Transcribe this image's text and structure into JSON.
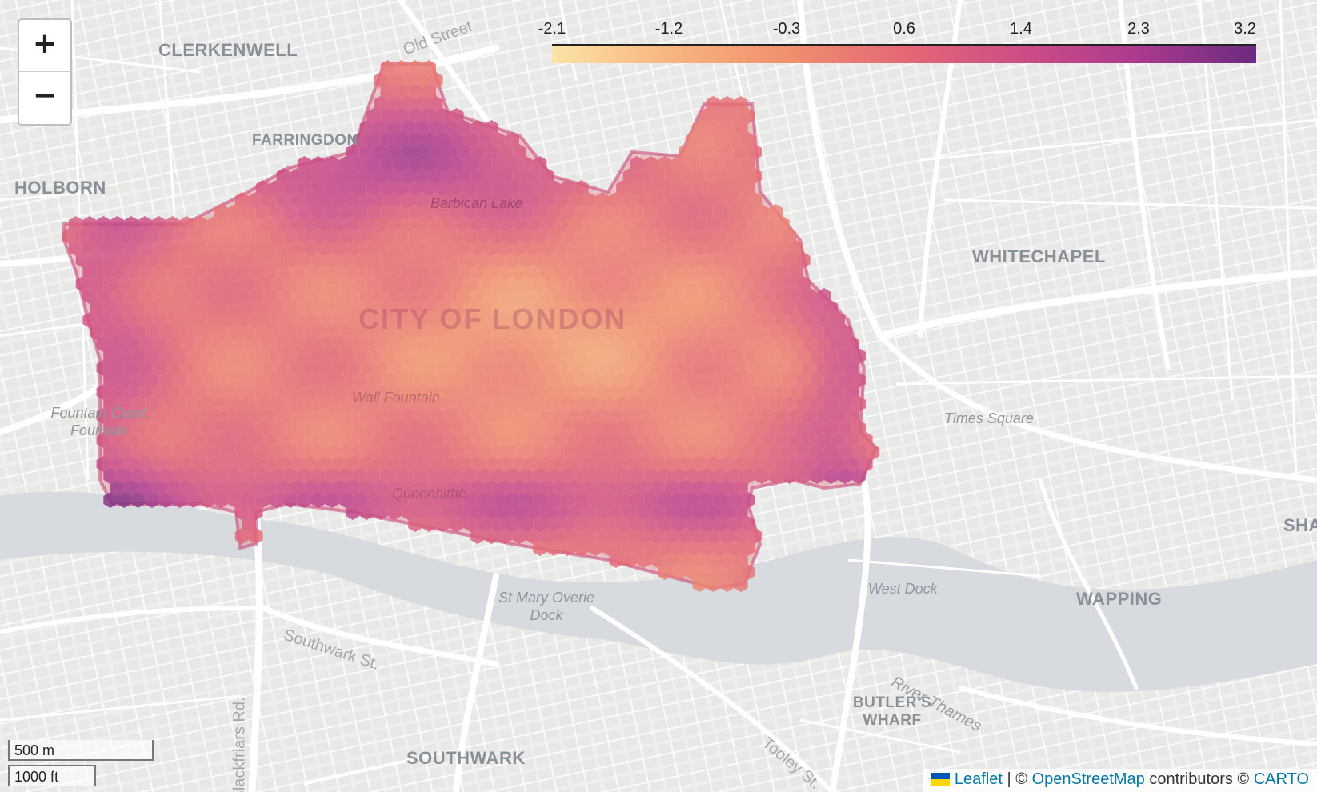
{
  "map": {
    "zoom_in_label": "+",
    "zoom_out_label": "−",
    "colorbar": {
      "ticks": [
        "-2.1",
        "-1.2",
        "-0.3",
        "0.6",
        "1.4",
        "2.3",
        "3.2"
      ],
      "min": -2.1,
      "max": 3.2,
      "colors": [
        "#fce3a6",
        "#f8b57f",
        "#f0906e",
        "#e46875",
        "#cd4d86",
        "#ab3a8f",
        "#6a2b7e"
      ]
    },
    "places": [
      {
        "name": "CLERKENWELL",
        "size": "big"
      },
      {
        "name": "FARRINGDON",
        "size": "mid"
      },
      {
        "name": "HOLBORN",
        "size": "big"
      },
      {
        "name": "WHITECHAPEL",
        "size": "big"
      },
      {
        "name": "CITY OF LONDON",
        "size": "district"
      },
      {
        "name": "WAPPING",
        "size": "big"
      },
      {
        "name": "SOUTHWARK",
        "size": "big"
      },
      {
        "name": "BUTLER'S WHARF",
        "size": "mid"
      },
      {
        "name": "SHA",
        "size": "big"
      }
    ],
    "pois": [
      "Barbican Lake",
      "Wall Fountain",
      "Fountain Court Fountain",
      "Times Square",
      "Queenhithe",
      "St Mary Overie Dock",
      "West Dock"
    ],
    "streets": [
      "Old Street",
      "Southwark St.",
      "Blackfriars Rd.",
      "Tooley St.",
      "River Thames"
    ],
    "scale": {
      "metric": "500 m",
      "imperial": "1000 ft"
    },
    "attribution": {
      "leaflet": "Leaflet",
      "sep": "| ©",
      "osm": "OpenStreetMap",
      "contrib": "contributors ©",
      "carto": "CARTO"
    },
    "colors": {
      "land": "#f2f2f0",
      "road": "#ffffff",
      "water": "#d7dbdf",
      "boundary": "#c94a7a",
      "link": "#0078a8"
    }
  }
}
